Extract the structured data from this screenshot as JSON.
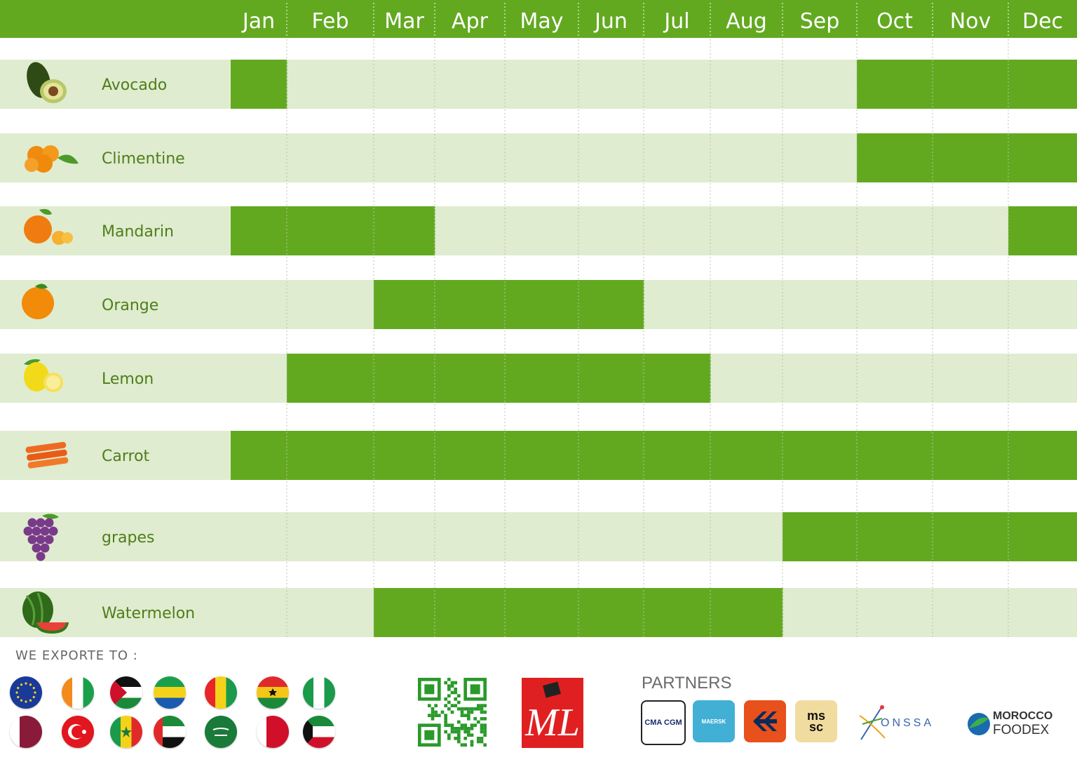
{
  "chart_data": {
    "type": "table",
    "title": "",
    "months": [
      "Jan",
      "Feb",
      "Mar",
      "Apr",
      "May",
      "Jun",
      "Jul",
      "Aug",
      "Sep",
      "Oct",
      "Nov",
      "Dec"
    ],
    "rows": [
      {
        "name": "Avocado",
        "icon": "avocado-icon",
        "active": [
          1,
          10,
          11,
          12
        ]
      },
      {
        "name": "Climentine",
        "icon": "clementine-icon",
        "active": [
          10,
          11,
          12
        ]
      },
      {
        "name": "Mandarin",
        "icon": "mandarin-icon",
        "active": [
          1,
          2,
          3,
          12
        ]
      },
      {
        "name": "Orange",
        "icon": "orange-icon",
        "active": [
          3,
          4,
          5,
          6
        ]
      },
      {
        "name": "Lemon",
        "icon": "lemon-icon",
        "active": [
          2,
          3,
          4,
          5,
          6,
          7
        ]
      },
      {
        "name": "Carrot",
        "icon": "carrot-icon",
        "active": [
          1,
          2,
          3,
          4,
          5,
          6,
          7,
          8,
          9,
          10,
          11,
          12
        ]
      },
      {
        "name": "grapes",
        "icon": "grapes-icon",
        "active": [
          9,
          10,
          11,
          12
        ]
      },
      {
        "name": "Watermelon",
        "icon": "watermelon-icon",
        "active": [
          3,
          4,
          5,
          6,
          7,
          8
        ]
      }
    ],
    "colors": {
      "header": "#62a920",
      "active": "#62a920",
      "inactive": "#dfeccf",
      "header_text": "#ffffff",
      "label": "#4f7d1a"
    }
  },
  "footer": {
    "export_label": "WE EXPORTE TO :",
    "flags": [
      "eu-flag",
      "ivory-coast-flag",
      "jordan-flag",
      "gabon-flag",
      "guinea-flag",
      "ghana-flag",
      "nigeria-flag",
      "qatar-flag",
      "turkey-flag",
      "senegal-flag",
      "uae-flag",
      "saudi-arabia-flag",
      "bahrain-flag",
      "kuwait-flag"
    ],
    "partners_label": "PARTNERS",
    "partners": [
      {
        "name": "CMA CGM"
      },
      {
        "name": "MAERSK"
      },
      {
        "name": "ms\nsc"
      }
    ],
    "onssa": "ONSSA",
    "foodex_top": "MOROCCO",
    "foodex_bottom": "FOODEX",
    "ml_logo": "ML"
  }
}
